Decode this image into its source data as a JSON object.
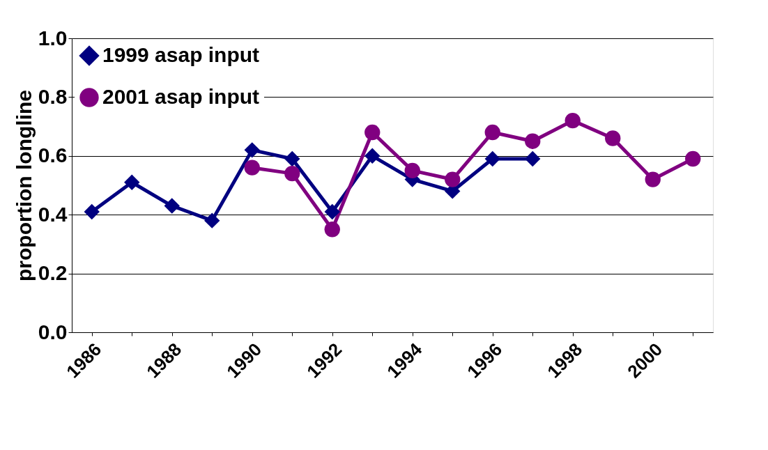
{
  "chart_data": {
    "type": "line",
    "ylabel": "proportion longline",
    "categories": [
      "1986",
      null,
      "1988",
      null,
      "1990",
      null,
      "1992",
      null,
      "1994",
      null,
      "1996",
      null,
      "1998",
      null,
      "2000",
      null
    ],
    "series": [
      {
        "name": "1999 asap input",
        "color": "#000080",
        "marker": "diamond",
        "values": [
          0.41,
          0.51,
          0.43,
          0.38,
          0.62,
          0.59,
          0.41,
          0.6,
          0.52,
          0.48,
          0.59,
          0.59,
          null,
          null,
          null,
          null
        ]
      },
      {
        "name": "2001 asap input",
        "color": "#800080",
        "marker": "circle",
        "values": [
          null,
          null,
          null,
          null,
          0.56,
          0.54,
          0.35,
          0.68,
          0.55,
          0.52,
          0.68,
          0.65,
          0.72,
          0.66,
          0.52,
          0.59
        ]
      }
    ],
    "ylim": [
      0,
      1.0
    ],
    "yticks": [
      {
        "value": 0,
        "label": "0.0"
      },
      {
        "value": 0.2,
        "label": "0.2"
      },
      {
        "value": 0.4,
        "label": "0.4"
      },
      {
        "value": 0.6,
        "label": "0.6"
      },
      {
        "value": 0.8,
        "label": "0.8"
      },
      {
        "value": 1.0,
        "label": "1.0"
      }
    ],
    "grid": "y",
    "legend": "top left",
    "line_style": "solid"
  }
}
